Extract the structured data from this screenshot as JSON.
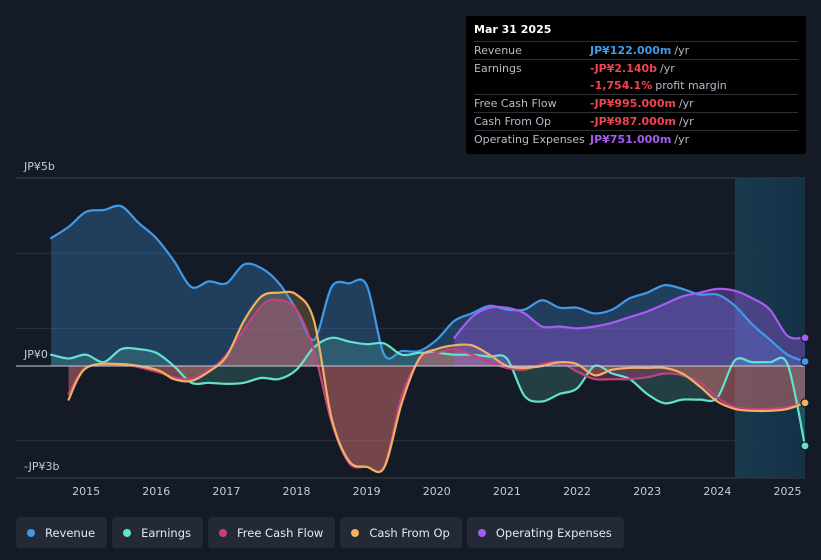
{
  "tooltip": {
    "date": "Mar 31 2025",
    "rows": [
      {
        "label": "Revenue",
        "value": "JP¥122.000m",
        "unit": "/yr",
        "color": "#3f9ae9"
      },
      {
        "label": "Earnings",
        "value": "-JP¥2.140b",
        "unit": "/yr",
        "color": "#f0434f"
      },
      {
        "label": "",
        "value": "-1,754.1%",
        "unit": "profit margin",
        "color": "#f0434f"
      },
      {
        "label": "Free Cash Flow",
        "value": "-JP¥995.000m",
        "unit": "/yr",
        "color": "#f0434f"
      },
      {
        "label": "Cash From Op",
        "value": "-JP¥987.000m",
        "unit": "/yr",
        "color": "#f0434f"
      },
      {
        "label": "Operating Expenses",
        "value": "JP¥751.000m",
        "unit": "/yr",
        "color": "#a65cf3"
      }
    ]
  },
  "legend": [
    {
      "label": "Revenue",
      "color": "#3f9ae9"
    },
    {
      "label": "Earnings",
      "color": "#62e2cf"
    },
    {
      "label": "Free Cash Flow",
      "color": "#c2427d"
    },
    {
      "label": "Cash From Op",
      "color": "#f1b064"
    },
    {
      "label": "Operating Expenses",
      "color": "#a65cf3"
    }
  ],
  "chart_data": {
    "type": "line",
    "title": "",
    "xlabel": "",
    "ylabel": "",
    "xlim": [
      2014.0,
      2025.25
    ],
    "ylim": [
      -3.0,
      5.0
    ],
    "y_tick_labels": [
      {
        "value": 5,
        "label": "JP¥5b"
      },
      {
        "value": 0,
        "label": "JP¥0"
      },
      {
        "value": -3,
        "label": "-JP¥3b"
      }
    ],
    "x_ticks": [
      2015,
      2016,
      2017,
      2018,
      2019,
      2020,
      2021,
      2022,
      2023,
      2024,
      2025
    ],
    "x_tick_labels": [
      "2015",
      "2016",
      "2017",
      "2018",
      "2019",
      "2020",
      "2021",
      "2022",
      "2023",
      "2024",
      "2025"
    ],
    "forecast_start": 2024.25,
    "series": [
      {
        "name": "Revenue",
        "color": "#3f9ae9",
        "fill": true,
        "x": [
          2014.5,
          2014.75,
          2015.0,
          2015.25,
          2015.5,
          2015.75,
          2016.0,
          2016.25,
          2016.5,
          2016.75,
          2017.0,
          2017.25,
          2017.5,
          2017.75,
          2018.0,
          2018.25,
          2018.5,
          2018.75,
          2019.0,
          2019.25,
          2019.5,
          2019.75,
          2020.0,
          2020.25,
          2020.5,
          2020.75,
          2021.0,
          2021.25,
          2021.5,
          2021.75,
          2022.0,
          2022.25,
          2022.5,
          2022.75,
          2023.0,
          2023.25,
          2023.5,
          2023.75,
          2024.0,
          2024.25,
          2024.5,
          2024.75,
          2025.0,
          2025.25
        ],
        "values": [
          3.4,
          3.7,
          4.1,
          4.15,
          4.25,
          3.8,
          3.4,
          2.8,
          2.1,
          2.25,
          2.2,
          2.7,
          2.6,
          2.2,
          1.5,
          0.7,
          2.1,
          2.2,
          2.15,
          0.3,
          0.4,
          0.4,
          0.7,
          1.2,
          1.4,
          1.6,
          1.5,
          1.5,
          1.75,
          1.55,
          1.55,
          1.4,
          1.5,
          1.8,
          1.95,
          2.15,
          2.05,
          1.9,
          1.9,
          1.6,
          1.1,
          0.7,
          0.3,
          0.12
        ]
      },
      {
        "name": "Earnings",
        "color": "#62e2cf",
        "fill": true,
        "x": [
          2014.5,
          2014.75,
          2015.0,
          2015.25,
          2015.5,
          2015.75,
          2016.0,
          2016.25,
          2016.5,
          2016.75,
          2017.0,
          2017.25,
          2017.5,
          2017.75,
          2018.0,
          2018.25,
          2018.5,
          2018.75,
          2019.0,
          2019.25,
          2019.5,
          2019.75,
          2020.0,
          2020.25,
          2020.5,
          2020.75,
          2021.0,
          2021.25,
          2021.5,
          2021.75,
          2022.0,
          2022.25,
          2022.5,
          2022.75,
          2023.0,
          2023.25,
          2023.5,
          2023.75,
          2024.0,
          2024.25,
          2024.5,
          2024.75,
          2025.0,
          2025.25
        ],
        "values": [
          0.3,
          0.2,
          0.3,
          0.1,
          0.45,
          0.45,
          0.35,
          0.0,
          -0.45,
          -0.45,
          -0.48,
          -0.45,
          -0.32,
          -0.35,
          -0.1,
          0.5,
          0.75,
          0.65,
          0.58,
          0.6,
          0.3,
          0.35,
          0.35,
          0.3,
          0.3,
          0.25,
          0.2,
          -0.8,
          -0.95,
          -0.75,
          -0.6,
          0.0,
          -0.2,
          -0.35,
          -0.75,
          -1.0,
          -0.9,
          -0.9,
          -0.85,
          0.15,
          0.1,
          0.1,
          0.05,
          -2.14
        ]
      },
      {
        "name": "Free Cash Flow",
        "color": "#c2427d",
        "fill": true,
        "x": [
          2014.75,
          2015.0,
          2015.5,
          2016.0,
          2016.25,
          2016.5,
          2016.75,
          2017.0,
          2017.5,
          2017.75,
          2018.0,
          2018.25,
          2018.5,
          2018.75,
          2019.0,
          2019.25,
          2019.5,
          2019.75,
          2020.0,
          2020.25,
          2020.5,
          2020.75,
          2021.0,
          2021.25,
          2021.5,
          2021.75,
          2022.0,
          2022.25,
          2022.5,
          2022.75,
          2023.0,
          2023.25,
          2023.5,
          2023.75,
          2024.0,
          2024.25,
          2024.5,
          2024.75,
          2025.0,
          2025.25
        ],
        "values": [
          -0.75,
          -0.05,
          0.05,
          -0.15,
          -0.3,
          -0.35,
          -0.1,
          0.3,
          1.6,
          1.75,
          1.5,
          0.4,
          -1.5,
          -2.6,
          -2.7,
          -2.7,
          -0.8,
          0.15,
          0.35,
          0.45,
          0.3,
          0.1,
          -0.05,
          -0.1,
          0.05,
          0.1,
          -0.15,
          -0.35,
          -0.35,
          -0.35,
          -0.3,
          -0.2,
          -0.25,
          -0.45,
          -0.85,
          -1.1,
          -1.15,
          -1.15,
          -1.1,
          -0.995
        ]
      },
      {
        "name": "Cash From Op",
        "color": "#f1b064",
        "fill": true,
        "x": [
          2014.75,
          2015.0,
          2015.5,
          2016.0,
          2016.25,
          2016.5,
          2016.75,
          2017.0,
          2017.25,
          2017.5,
          2017.75,
          2018.0,
          2018.25,
          2018.5,
          2018.75,
          2019.0,
          2019.25,
          2019.5,
          2019.75,
          2020.0,
          2020.25,
          2020.5,
          2020.75,
          2021.0,
          2021.25,
          2021.5,
          2021.75,
          2022.0,
          2022.25,
          2022.5,
          2022.75,
          2023.0,
          2023.25,
          2023.5,
          2023.75,
          2024.0,
          2024.25,
          2024.5,
          2024.75,
          2025.0,
          2025.25
        ],
        "values": [
          -0.9,
          -0.05,
          0.05,
          -0.1,
          -0.35,
          -0.4,
          -0.15,
          0.25,
          1.2,
          1.85,
          1.95,
          1.9,
          1.2,
          -1.4,
          -2.55,
          -2.7,
          -2.72,
          -1.0,
          0.2,
          0.45,
          0.55,
          0.55,
          0.3,
          0.0,
          -0.05,
          0.0,
          0.1,
          0.05,
          -0.25,
          -0.1,
          -0.05,
          -0.05,
          -0.05,
          -0.2,
          -0.55,
          -0.95,
          -1.15,
          -1.2,
          -1.2,
          -1.15,
          -0.987
        ]
      },
      {
        "name": "Operating Expenses",
        "color": "#a65cf3",
        "fill": true,
        "x": [
          2020.25,
          2020.5,
          2020.75,
          2021.0,
          2021.25,
          2021.5,
          2021.75,
          2022.0,
          2022.25,
          2022.5,
          2022.75,
          2023.0,
          2023.25,
          2023.5,
          2023.75,
          2024.0,
          2024.25,
          2024.5,
          2024.75,
          2025.0,
          2025.25
        ],
        "values": [
          0.75,
          1.3,
          1.55,
          1.55,
          1.4,
          1.05,
          1.05,
          1.0,
          1.05,
          1.15,
          1.3,
          1.45,
          1.65,
          1.85,
          1.95,
          2.05,
          2.0,
          1.8,
          1.5,
          0.8,
          0.751
        ]
      }
    ]
  }
}
